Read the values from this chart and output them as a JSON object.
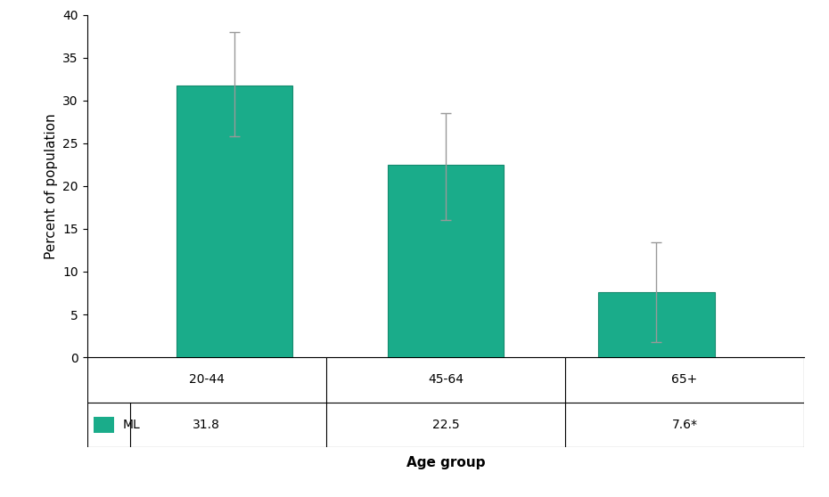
{
  "categories": [
    "20-44",
    "45-64",
    "65+"
  ],
  "values": [
    31.8,
    22.5,
    7.6
  ],
  "errors_upper": [
    6.2,
    6.0,
    5.8
  ],
  "errors_lower": [
    6.0,
    6.5,
    5.8
  ],
  "bar_color": "#1aac8a",
  "bar_edge_color": "#158a6e",
  "error_color": "#999999",
  "ylabel": "Percent of population",
  "xlabel": "Age group",
  "ylim": [
    0,
    40
  ],
  "yticks": [
    0,
    5,
    10,
    15,
    20,
    25,
    30,
    35,
    40
  ],
  "legend_label": "ML",
  "table_values": [
    "31.8",
    "22.5",
    "7.6*"
  ],
  "background_color": "#ffffff",
  "bar_width": 0.55
}
